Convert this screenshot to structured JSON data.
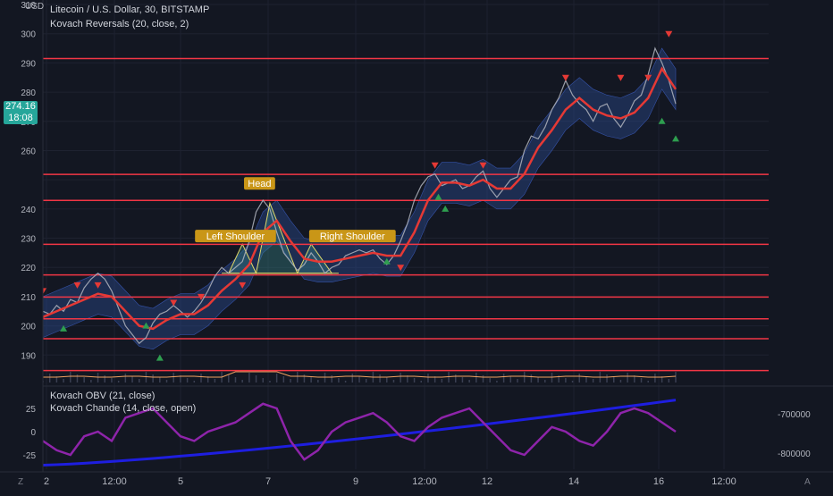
{
  "header": {
    "symbol_title": "Litecoin / U.S. Dollar, 30, BITSTAMP",
    "indicator_1": "Kovach Reversals (20, close, 2)",
    "currency_label": "USD"
  },
  "lower_pane": {
    "legend_1": "Kovach OBV (21, close)",
    "legend_2": "Kovach Chande (14, close, open)",
    "left_ticks": [
      "25",
      "0",
      "-25"
    ],
    "right_ticks": [
      "-700000",
      "-800000"
    ]
  },
  "last_price": {
    "value": "274.16",
    "countdown": "18:08",
    "color": "#26a69a"
  },
  "time_axis": {
    "labels": [
      "2",
      "12:00",
      "5",
      "7",
      "9",
      "12:00",
      "12",
      "14",
      "16",
      "12:00"
    ],
    "left_button": "Z",
    "right_button": "A"
  },
  "chart_data": {
    "type": "line",
    "y_axis": {
      "scale": "linear",
      "range": [
        180,
        310
      ],
      "ticks": [
        190,
        200,
        210,
        220,
        230,
        240,
        250,
        260,
        270,
        280,
        290,
        300,
        310
      ],
      "tick_labels_shown": [
        "190",
        "200",
        "210",
        "220",
        "230",
        "240",
        "260",
        "270",
        "280",
        "290",
        "300",
        "310"
      ]
    },
    "levels": [
      {
        "label": "291.51",
        "value": 291.51
      },
      {
        "label": "251.84",
        "value": 251.84
      },
      {
        "label": "242.93",
        "value": 242.93
      },
      {
        "label": "227.89",
        "value": 227.89
      },
      {
        "label": "217.43",
        "value": 217.43
      },
      {
        "label": "209.86",
        "value": 209.86
      },
      {
        "label": "202.41",
        "value": 202.41
      },
      {
        "label": "195.59",
        "value": 195.59
      },
      {
        "label": "184.70",
        "value": 184.7
      }
    ],
    "level_color": "#f23645",
    "price_color": "#b2b5be",
    "ma_color": "#e53935",
    "band_color": "#2a4a8c",
    "price_series": [
      [
        0,
        205
      ],
      [
        2,
        204
      ],
      [
        4,
        207
      ],
      [
        6,
        205
      ],
      [
        8,
        209
      ],
      [
        10,
        208
      ],
      [
        12,
        213
      ],
      [
        14,
        216
      ],
      [
        16,
        218
      ],
      [
        18,
        216
      ],
      [
        20,
        212
      ],
      [
        22,
        206
      ],
      [
        24,
        200
      ],
      [
        26,
        197
      ],
      [
        28,
        194
      ],
      [
        30,
        196
      ],
      [
        32,
        201
      ],
      [
        34,
        204
      ],
      [
        36,
        205
      ],
      [
        38,
        207
      ],
      [
        40,
        205
      ],
      [
        42,
        203
      ],
      [
        44,
        205
      ],
      [
        46,
        208
      ],
      [
        48,
        212
      ],
      [
        50,
        217
      ],
      [
        52,
        220
      ],
      [
        54,
        218
      ],
      [
        56,
        220
      ],
      [
        58,
        222
      ],
      [
        60,
        229
      ],
      [
        62,
        239
      ],
      [
        64,
        243
      ],
      [
        66,
        240
      ],
      [
        68,
        232
      ],
      [
        70,
        225
      ],
      [
        72,
        222
      ],
      [
        74,
        219
      ],
      [
        76,
        221
      ],
      [
        78,
        225
      ],
      [
        80,
        222
      ],
      [
        82,
        218
      ],
      [
        84,
        220
      ],
      [
        86,
        221
      ],
      [
        88,
        224
      ],
      [
        90,
        225
      ],
      [
        92,
        226
      ],
      [
        94,
        225
      ],
      [
        96,
        226
      ],
      [
        98,
        223
      ],
      [
        100,
        221
      ],
      [
        102,
        224
      ],
      [
        104,
        229
      ],
      [
        106,
        235
      ],
      [
        108,
        243
      ],
      [
        110,
        248
      ],
      [
        112,
        251
      ],
      [
        114,
        252
      ],
      [
        116,
        248
      ],
      [
        118,
        249
      ],
      [
        120,
        250
      ],
      [
        122,
        247
      ],
      [
        124,
        248
      ],
      [
        126,
        251
      ],
      [
        128,
        253
      ],
      [
        130,
        247
      ],
      [
        132,
        244
      ],
      [
        134,
        247
      ],
      [
        136,
        250
      ],
      [
        138,
        251
      ],
      [
        140,
        260
      ],
      [
        142,
        265
      ],
      [
        144,
        264
      ],
      [
        146,
        268
      ],
      [
        148,
        274
      ],
      [
        150,
        278
      ],
      [
        152,
        284
      ],
      [
        154,
        279
      ],
      [
        156,
        276
      ],
      [
        158,
        274
      ],
      [
        160,
        270
      ],
      [
        162,
        275
      ],
      [
        164,
        276
      ],
      [
        166,
        271
      ],
      [
        168,
        268
      ],
      [
        170,
        272
      ],
      [
        172,
        277
      ],
      [
        174,
        279
      ],
      [
        176,
        286
      ],
      [
        178,
        295
      ],
      [
        180,
        290
      ],
      [
        182,
        284
      ],
      [
        184,
        276
      ]
    ],
    "ma_series": [
      [
        0,
        203
      ],
      [
        4,
        205
      ],
      [
        8,
        207
      ],
      [
        12,
        209
      ],
      [
        16,
        211
      ],
      [
        20,
        210
      ],
      [
        24,
        205
      ],
      [
        28,
        200
      ],
      [
        32,
        199
      ],
      [
        36,
        202
      ],
      [
        40,
        204
      ],
      [
        44,
        204
      ],
      [
        48,
        207
      ],
      [
        52,
        212
      ],
      [
        56,
        216
      ],
      [
        60,
        221
      ],
      [
        64,
        232
      ],
      [
        68,
        236
      ],
      [
        72,
        229
      ],
      [
        76,
        223
      ],
      [
        80,
        222
      ],
      [
        84,
        222
      ],
      [
        88,
        223
      ],
      [
        92,
        224
      ],
      [
        96,
        225
      ],
      [
        100,
        224
      ],
      [
        104,
        224
      ],
      [
        108,
        232
      ],
      [
        112,
        243
      ],
      [
        116,
        249
      ],
      [
        120,
        249
      ],
      [
        124,
        248
      ],
      [
        128,
        250
      ],
      [
        132,
        247
      ],
      [
        136,
        247
      ],
      [
        140,
        252
      ],
      [
        144,
        261
      ],
      [
        148,
        267
      ],
      [
        152,
        274
      ],
      [
        156,
        278
      ],
      [
        160,
        274
      ],
      [
        164,
        272
      ],
      [
        168,
        271
      ],
      [
        172,
        273
      ],
      [
        176,
        278
      ],
      [
        180,
        288
      ],
      [
        184,
        281
      ]
    ],
    "buy_signals": [
      [
        6,
        199
      ],
      [
        30,
        200
      ],
      [
        34,
        189
      ],
      [
        100,
        222
      ],
      [
        115,
        244
      ],
      [
        117,
        240
      ],
      [
        180,
        270
      ],
      [
        184,
        264
      ]
    ],
    "sell_signals": [
      [
        0,
        212
      ],
      [
        10,
        214
      ],
      [
        16,
        214
      ],
      [
        38,
        208
      ],
      [
        46,
        210
      ],
      [
        58,
        214
      ],
      [
        104,
        220
      ],
      [
        114,
        255
      ],
      [
        128,
        255
      ],
      [
        152,
        285
      ],
      [
        168,
        285
      ],
      [
        176,
        285
      ],
      [
        182,
        300
      ]
    ],
    "annotations": [
      {
        "text": "Left Shoulder",
        "x": 56,
        "y": 228
      },
      {
        "text": "Head",
        "x": 63,
        "y": 246
      },
      {
        "text": "Right Shoulder",
        "x": 90,
        "y": 228
      }
    ],
    "obv_color": "#1e1ee0",
    "chande_color": "#8e24aa"
  }
}
